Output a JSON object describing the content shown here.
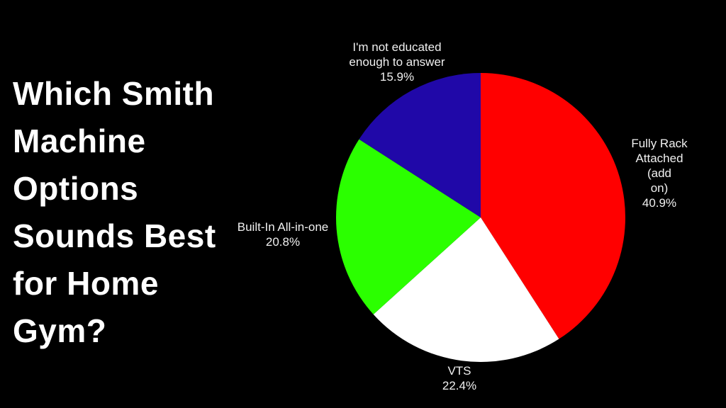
{
  "page": {
    "background": "#000000"
  },
  "title": {
    "text": "Which Smith\nMachine\nOptions\nSounds Best\nfor Home\nGym?",
    "full_text": "Which Smith Machine Options Sounds Best for Home Gym?"
  },
  "chart_data": {
    "type": "pie",
    "title": "Which Smith Machine Options Sounds Best for Home Gym?",
    "start_angle_deg": 90,
    "direction": "clockwise",
    "background": "#000000",
    "legend_position": "none",
    "slices": [
      {
        "label": "Fully Rack Attached (add on)",
        "value": 40.9,
        "pct_text": "40.9%",
        "color": "#ff0000"
      },
      {
        "label": "VTS",
        "value": 22.4,
        "pct_text": "22.4%",
        "color": "#ffffff"
      },
      {
        "label": "Built-In All-in-one",
        "value": 20.8,
        "pct_text": "20.8%",
        "color": "#2bff00"
      },
      {
        "label": "I'm not educated enough to answer",
        "value": 15.9,
        "pct_text": "15.9%",
        "color": "#2008a8"
      }
    ]
  },
  "pie_labels": {
    "not_educated": "I'm not educated\nenough to answer\n15.9%",
    "fully_rack": "Fully Rack\nAttached (add\non)\n40.9%",
    "built_in": "Built-In All-in-one\n20.8%",
    "vts": "VTS\n22.4%"
  }
}
